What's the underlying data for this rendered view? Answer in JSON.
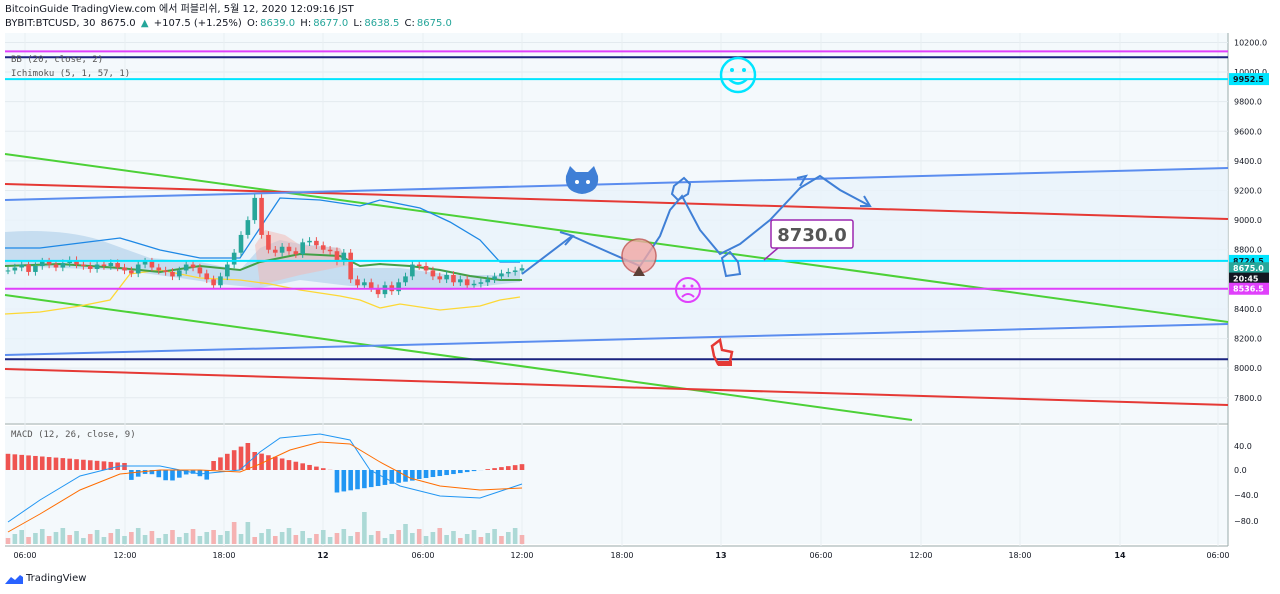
{
  "header": {
    "title": "BitcoinGuide TradingView.com 에서 퍼블리쉬, 5월 12, 2020 12:09:16 JST",
    "symbol": "BYBIT:BTCUSD, 30",
    "last": "8675.0",
    "arrow": "▲",
    "change": "+107.5 (+1.25%)",
    "ohlc": {
      "o": "8639.0",
      "h": "8677.0",
      "l": "8638.5",
      "c": "8675.0"
    },
    "o_label": "O:",
    "h_label": "H:",
    "l_label": "L:",
    "c_label": "C:"
  },
  "indicators": [
    "BB (20, close, 2)",
    "Ichimoku (5, 1, 57, 1)"
  ],
  "macd_label": "MACD (12, 26, close, 9)",
  "footer": {
    "brand": "TradingView"
  },
  "colors": {
    "up": "#26a69a",
    "down": "#ef5350",
    "cyan": "#00e5ff",
    "magenta": "#e040fb",
    "green": "#4cd137",
    "red": "#e53935",
    "blue": "#5b8def",
    "navy": "#1a237e",
    "macd_up": "#ef5350",
    "macd_dn": "#2196f3"
  },
  "chart_data": {
    "type": "line",
    "y_axis_ticks": [
      "10200.0",
      "10000.0",
      "9800.0",
      "9600.0",
      "9400.0",
      "9200.0",
      "9000.0",
      "8800.0",
      "8600.0",
      "8400.0",
      "8200.0",
      "8000.0",
      "7800.0"
    ],
    "ylim": [
      7650,
      10230
    ],
    "price_labels": [
      {
        "text": "9952.5",
        "price": 9952.5,
        "color": "#00e5ff"
      },
      {
        "text": "8724.5",
        "price": 8724.5,
        "color": "#00e5ff"
      },
      {
        "text": "8675.0",
        "price": 8675.0,
        "color": "#26a69a"
      },
      {
        "text": "20:45",
        "price": 8605,
        "color": "#131722"
      },
      {
        "text": "8536.5",
        "price": 8536.5,
        "color": "#e040fb"
      }
    ],
    "x_axis_ticks": [
      "06:00",
      "12:00",
      "18:00",
      "12",
      "06:00",
      "12:00",
      "18:00",
      "13",
      "06:00",
      "12:00",
      "18:00",
      "14",
      "06:00"
    ],
    "macd_ticks": [
      "40.0",
      "0.0",
      "−40.0",
      "−80.0"
    ],
    "annotation": "8730.0",
    "horizontal_lines": [
      {
        "price": 10140,
        "color": "#e040fb"
      },
      {
        "price": 10100,
        "color": "#1a237e"
      },
      {
        "price": 9952.5,
        "color": "#00e5ff"
      },
      {
        "price": 8724.5,
        "color": "#00e5ff"
      },
      {
        "price": 8536.5,
        "color": "#e040fb"
      },
      {
        "price": 8060,
        "color": "#1a237e"
      }
    ],
    "candles_close": [
      8660,
      8680,
      8700,
      8650,
      8690,
      8720,
      8700,
      8680,
      8710,
      8730,
      8700,
      8690,
      8670,
      8700,
      8690,
      8710,
      8680,
      8660,
      8640,
      8700,
      8720,
      8680,
      8660,
      8650,
      8620,
      8660,
      8700,
      8680,
      8640,
      8600,
      8560,
      8620,
      8700,
      8780,
      8900,
      9000,
      9150,
      8900,
      8800,
      8780,
      8820,
      8790,
      8770,
      8850,
      8860,
      8830,
      8800,
      8790,
      8720,
      8780,
      8600,
      8560,
      8580,
      8540,
      8500,
      8560,
      8520,
      8580,
      8620,
      8700,
      8690,
      8660,
      8620,
      8600,
      8630,
      8580,
      8600,
      8560,
      8570,
      8580,
      8600,
      8620,
      8640,
      8650,
      8660,
      8675
    ]
  }
}
